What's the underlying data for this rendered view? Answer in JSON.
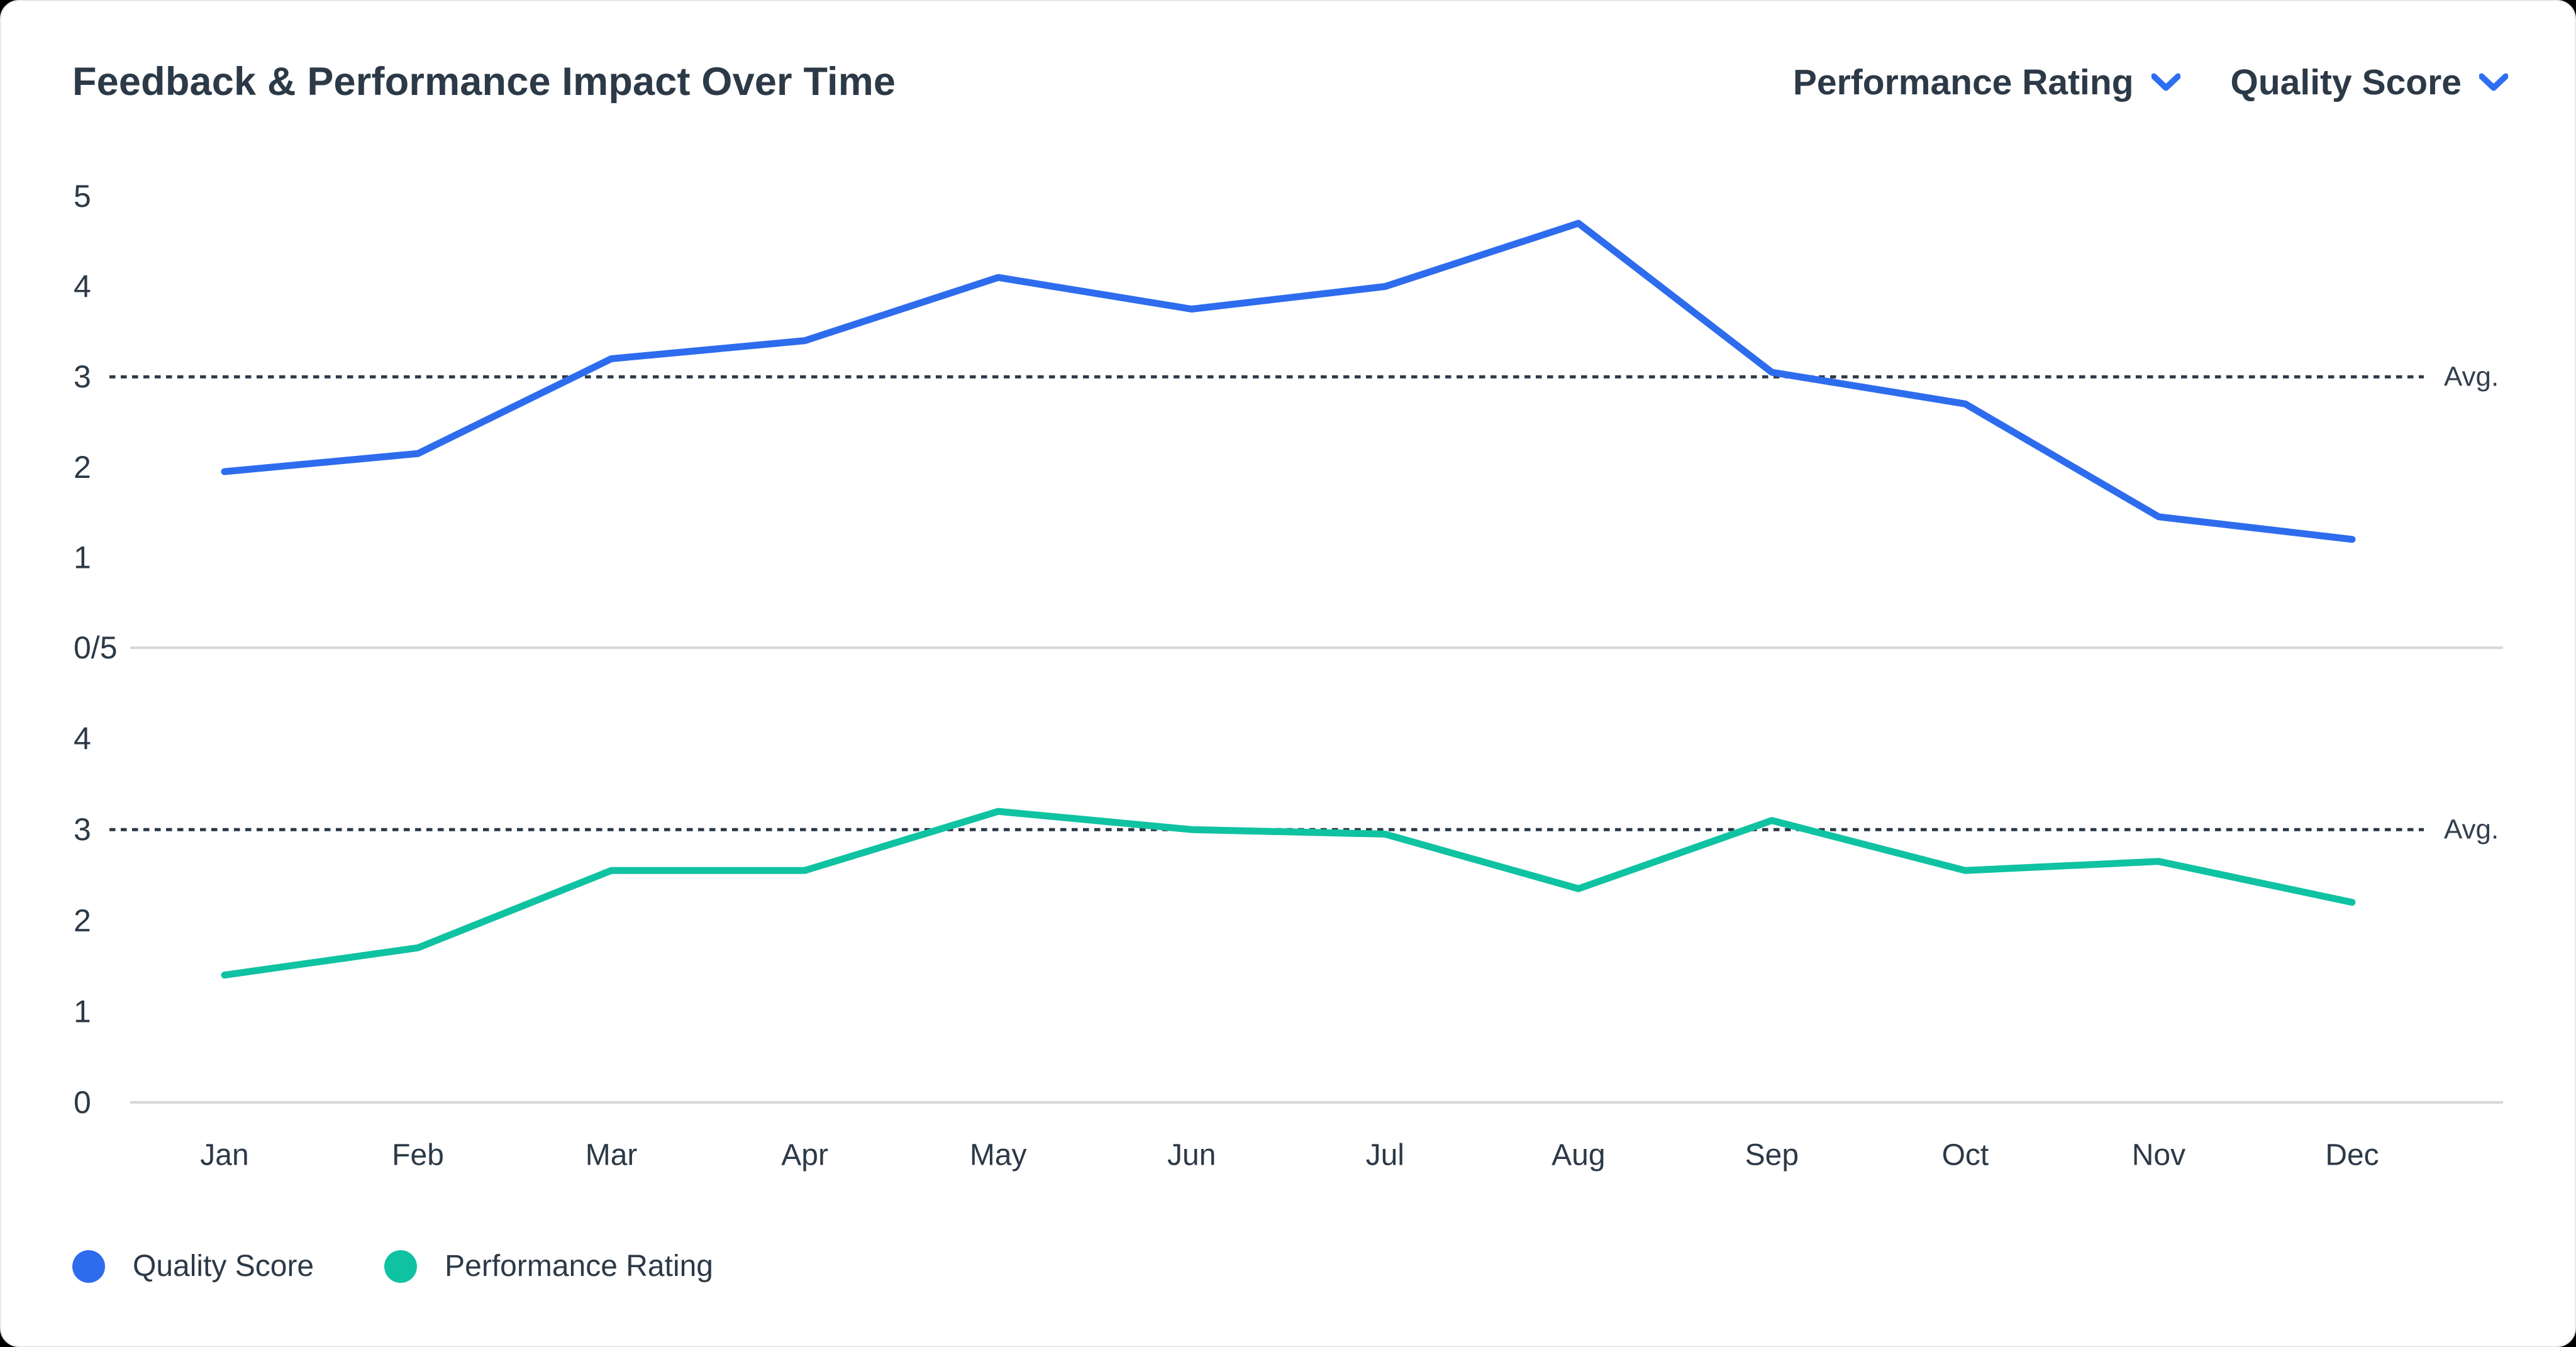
{
  "header": {
    "title": "Feedback & Performance Impact Over Time",
    "selectors": [
      {
        "label": "Performance Rating",
        "icon": "chevron-down-icon",
        "accent": "#2e6ef2"
      },
      {
        "label": "Quality Score",
        "icon": "chevron-down-icon",
        "accent": "#2e6ef2"
      }
    ]
  },
  "chart_data": {
    "type": "line",
    "title": "Feedback & Performance Impact Over Time",
    "categories": [
      "Jan",
      "Feb",
      "Mar",
      "Apr",
      "May",
      "Jun",
      "Jul",
      "Aug",
      "Sep",
      "Oct",
      "Nov",
      "Dec"
    ],
    "xlabel": "",
    "ylabel": "",
    "grid": "off",
    "panels": [
      {
        "name": "Quality Score",
        "color": "#2e6cee",
        "ylim": [
          0,
          5
        ],
        "values": [
          1.95,
          2.15,
          3.2,
          3.4,
          4.1,
          3.75,
          4.0,
          4.7,
          3.05,
          2.7,
          1.45,
          1.2
        ],
        "y_ticks": [
          {
            "label": "5",
            "value": 5
          },
          {
            "label": "4",
            "value": 4
          },
          {
            "label": "3",
            "value": 3
          },
          {
            "label": "2",
            "value": 2
          },
          {
            "label": "1",
            "value": 1
          },
          {
            "label": "0/5",
            "value": 0
          }
        ],
        "avg_line_value": 3,
        "avg_label": "Avg."
      },
      {
        "name": "Performance Rating",
        "color": "#0fc2a2",
        "ylim": [
          0,
          5
        ],
        "values": [
          1.4,
          1.7,
          2.55,
          2.55,
          3.2,
          3.0,
          2.95,
          2.35,
          3.1,
          2.55,
          2.65,
          2.2
        ],
        "y_ticks": [
          {
            "label": "4",
            "value": 4
          },
          {
            "label": "3",
            "value": 3
          },
          {
            "label": "2",
            "value": 2
          },
          {
            "label": "1",
            "value": 1
          },
          {
            "label": "0",
            "value": 0
          }
        ],
        "avg_line_value": 3,
        "avg_label": "Avg."
      }
    ],
    "legend": [
      {
        "label": "Quality Score",
        "color": "#2e6cee"
      },
      {
        "label": "Performance Rating",
        "color": "#0fc2a2"
      }
    ],
    "legend_position": "bottom-left",
    "colors": {
      "axis_line": "#d6d7d9",
      "avg_dotted": "#2b3948",
      "text": "#2c3947"
    }
  }
}
